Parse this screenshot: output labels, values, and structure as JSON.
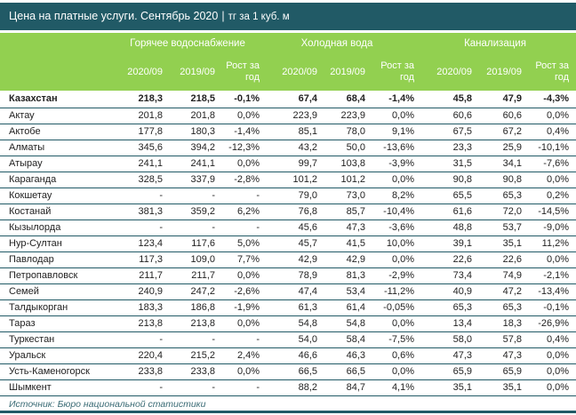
{
  "title": {
    "main": "Цена на платные услуги. Сентябрь 2020",
    "separator": "|",
    "unit": "тг за 1 куб. м"
  },
  "groups": [
    "Горячее водоснабжение",
    "Холодная вода",
    "Канализация"
  ],
  "subheaders": [
    "2020/09",
    "2019/09",
    "Рост за год",
    "2020/09",
    "2019/09",
    "Рост за год",
    "2020/09",
    "2019/09",
    "Рост за год"
  ],
  "rows": [
    {
      "name": "Казахстан",
      "v": [
        "218,3",
        "218,5",
        "-0,1%",
        "67,4",
        "68,4",
        "-1,4%",
        "45,8",
        "47,9",
        "-4,3%"
      ]
    },
    {
      "name": "Актау",
      "v": [
        "201,8",
        "201,8",
        "0,0%",
        "223,9",
        "223,9",
        "0,0%",
        "60,6",
        "60,6",
        "0,0%"
      ]
    },
    {
      "name": "Актобе",
      "v": [
        "177,8",
        "180,3",
        "-1,4%",
        "85,1",
        "78,0",
        "9,1%",
        "67,5",
        "67,2",
        "0,4%"
      ]
    },
    {
      "name": "Алматы",
      "v": [
        "345,6",
        "394,2",
        "-12,3%",
        "43,2",
        "50,0",
        "-13,6%",
        "23,3",
        "25,9",
        "-10,1%"
      ]
    },
    {
      "name": "Атырау",
      "v": [
        "241,1",
        "241,1",
        "0,0%",
        "99,7",
        "103,8",
        "-3,9%",
        "31,5",
        "34,1",
        "-7,6%"
      ]
    },
    {
      "name": "Караганда",
      "v": [
        "328,5",
        "337,9",
        "-2,8%",
        "101,2",
        "101,2",
        "0,0%",
        "90,8",
        "90,8",
        "0,0%"
      ]
    },
    {
      "name": "Кокшетау",
      "v": [
        "-",
        "-",
        "-",
        "79,0",
        "73,0",
        "8,2%",
        "65,5",
        "65,3",
        "0,2%"
      ]
    },
    {
      "name": "Костанай",
      "v": [
        "381,3",
        "359,2",
        "6,2%",
        "76,8",
        "85,7",
        "-10,4%",
        "61,6",
        "72,0",
        "-14,5%"
      ]
    },
    {
      "name": "Кызылорда",
      "v": [
        "-",
        "-",
        "-",
        "45,6",
        "47,3",
        "-3,6%",
        "48,8",
        "53,7",
        "-9,0%"
      ]
    },
    {
      "name": "Нур-Султан",
      "v": [
        "123,4",
        "117,6",
        "5,0%",
        "45,7",
        "41,5",
        "10,0%",
        "39,1",
        "35,1",
        "11,2%"
      ]
    },
    {
      "name": "Павлодар",
      "v": [
        "117,3",
        "109,0",
        "7,7%",
        "42,9",
        "42,9",
        "0,0%",
        "22,6",
        "22,6",
        "0,0%"
      ]
    },
    {
      "name": "Петропавловск",
      "v": [
        "211,7",
        "211,7",
        "0,0%",
        "78,9",
        "81,3",
        "-2,9%",
        "73,4",
        "74,9",
        "-2,1%"
      ]
    },
    {
      "name": "Семей",
      "v": [
        "240,9",
        "247,2",
        "-2,6%",
        "47,4",
        "53,4",
        "-11,2%",
        "40,9",
        "47,2",
        "-13,4%"
      ]
    },
    {
      "name": "Талдыкорган",
      "v": [
        "183,3",
        "186,8",
        "-1,9%",
        "61,3",
        "61,4",
        "-0,05%",
        "65,3",
        "65,3",
        "-0,1%"
      ]
    },
    {
      "name": "Тараз",
      "v": [
        "213,8",
        "213,8",
        "0,0%",
        "54,8",
        "54,8",
        "0,0%",
        "13,4",
        "18,3",
        "-26,9%"
      ]
    },
    {
      "name": "Туркестан",
      "v": [
        "-",
        "-",
        "-",
        "54,0",
        "58,4",
        "-7,5%",
        "58,0",
        "57,8",
        "0,4%"
      ]
    },
    {
      "name": "Уральск",
      "v": [
        "220,4",
        "215,2",
        "2,4%",
        "46,6",
        "46,3",
        "0,6%",
        "47,3",
        "47,3",
        "0,0%"
      ]
    },
    {
      "name": "Усть-Каменогорск",
      "v": [
        "233,8",
        "233,8",
        "0,0%",
        "66,5",
        "66,5",
        "0,0%",
        "65,9",
        "65,9",
        "0,0%"
      ]
    },
    {
      "name": "Шымкент",
      "v": [
        "-",
        "-",
        "-",
        "88,2",
        "84,7",
        "4,1%",
        "35,1",
        "35,1",
        "0,0%"
      ]
    }
  ],
  "source": "Источник: Бюро национальной статистики",
  "colors": {
    "title_bg": "#215a66",
    "header_bg": "#92d050"
  }
}
